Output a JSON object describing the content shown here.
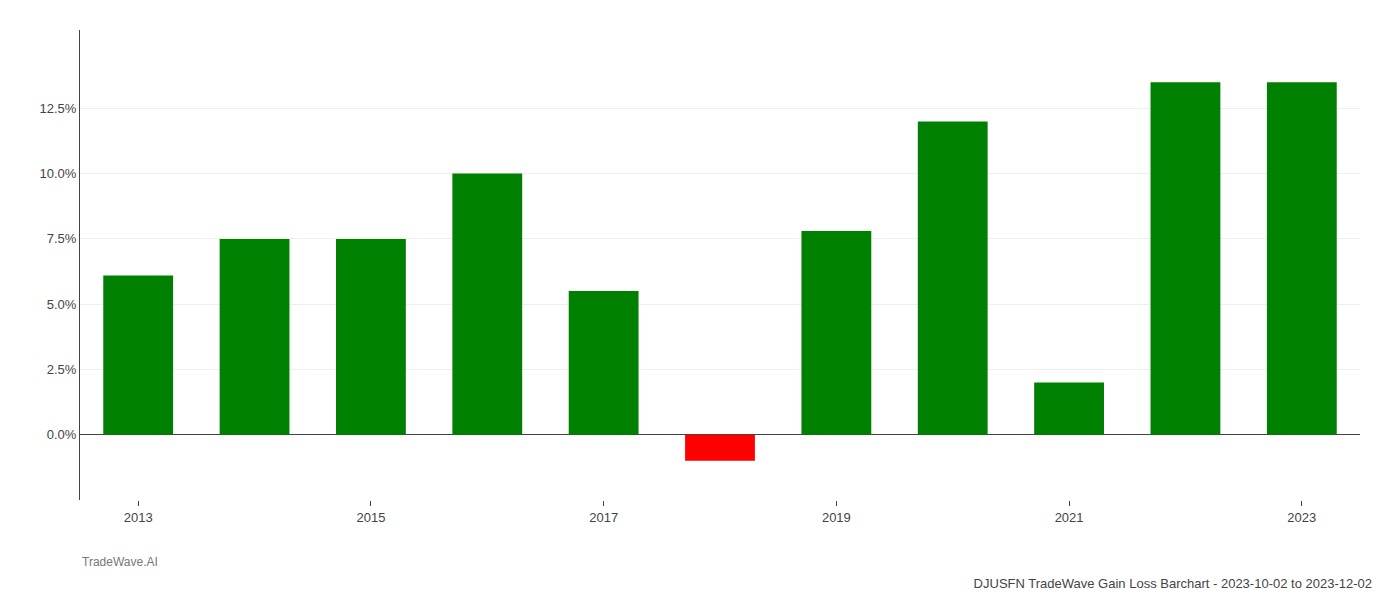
{
  "chart_data": {
    "type": "bar",
    "title": "DJUSFN TradeWave Gain Loss Barchart - 2023-10-02 to 2023-12-02",
    "annotations": [
      "TradeWave.AI"
    ],
    "categories": [
      "2013",
      null,
      "2015",
      null,
      "2017",
      null,
      "2019",
      null,
      "2021",
      null,
      "2023"
    ],
    "values": [
      0.061,
      0.075,
      0.075,
      0.1,
      0.055,
      -0.01,
      0.078,
      0.12,
      0.02,
      0.135,
      0.135
    ],
    "colors": [
      "#008000",
      "#008000",
      "#008000",
      "#008000",
      "#008000",
      "#ff0000",
      "#008000",
      "#008000",
      "#008000",
      "#008000",
      "#008000"
    ],
    "ylim": [
      -0.025,
      0.155
    ],
    "yticks": [
      {
        "value": 0.0,
        "label": "0.0%"
      },
      {
        "value": 0.025,
        "label": "2.5%"
      },
      {
        "value": 0.05,
        "label": "5.0%"
      },
      {
        "value": 0.075,
        "label": "7.5%"
      },
      {
        "value": 0.1,
        "label": "10.0%"
      },
      {
        "value": 0.125,
        "label": "12.5%"
      }
    ],
    "grid": true
  }
}
